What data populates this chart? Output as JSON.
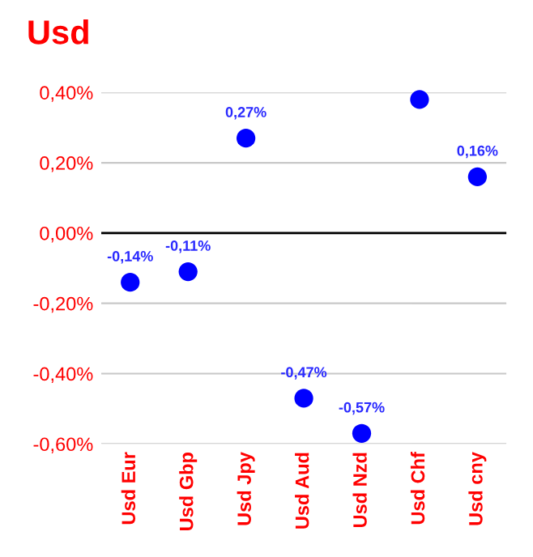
{
  "chart_data": {
    "type": "scatter",
    "title": "Usd",
    "categories": [
      "Usd Eur",
      "Usd Gbp",
      "Usd Jpy",
      "Usd Aud",
      "Usd Nzd",
      "Usd Chf",
      "Usd cny"
    ],
    "series": [
      {
        "color": "#0000ff",
        "values": [
          -0.14,
          -0.11,
          0.27,
          -0.47,
          -0.57,
          0.38,
          0.16
        ],
        "value_labels": [
          "-0,14%",
          "-0,11%",
          "0,27%",
          "-0,47%",
          "-0,57%",
          null,
          "0,16%"
        ]
      }
    ],
    "ylim": [
      -0.6,
      0.4
    ],
    "yticks": [
      {
        "value": -0.6,
        "label": "-0,60%"
      },
      {
        "value": -0.4,
        "label": "-0,40%"
      },
      {
        "value": -0.2,
        "label": "-0,20%"
      },
      {
        "value": 0,
        "label": "0,00%"
      },
      {
        "value": 0.2,
        "label": "0,20%"
      },
      {
        "value": 0.4,
        "label": "0,40%"
      }
    ],
    "grid": "y",
    "marker": "circle",
    "legend": false,
    "ref_lines": [
      {
        "axis": "y",
        "value": 0,
        "color": "#000000"
      }
    ]
  }
}
